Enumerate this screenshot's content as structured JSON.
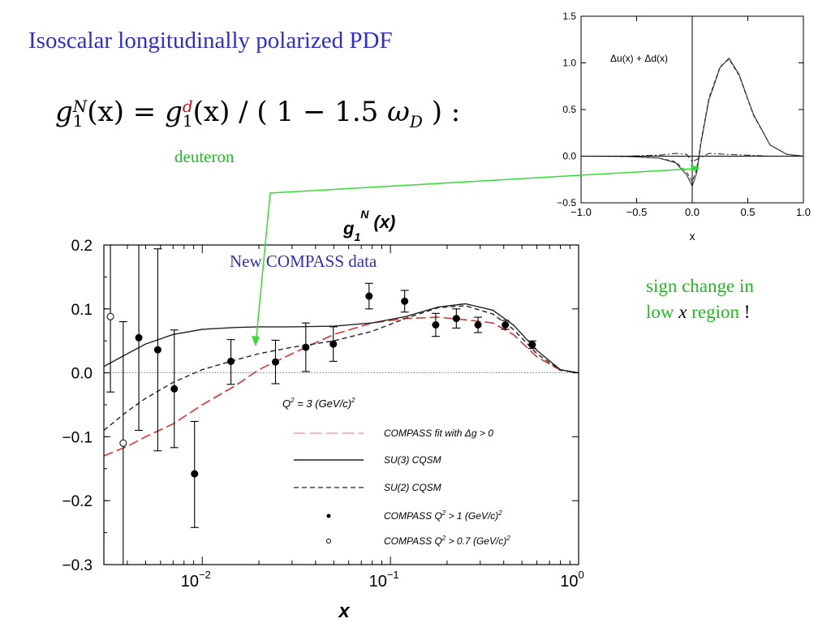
{
  "slide": {
    "title": "Isoscalar longitudinally polarized PDF",
    "formula": {
      "lhs_g": "g",
      "lhs_sub": "1",
      "lhs_sup": "N",
      "lhs_arg": "(x) = ",
      "rhs_g": "g",
      "rhs_sub": "1",
      "rhs_sup": "d",
      "rhs_arg": "(x) / ( 1 − 1.5 ",
      "omega": "ω",
      "omega_sub": "D",
      "tail": " )  :"
    },
    "deuteron_label": "deuteron",
    "compass_note": "New COMPASS data",
    "sign_note": {
      "line1": "sign change in",
      "line2_a": "low ",
      "line2_x": "x",
      "line2_b": " region ",
      "line2_c": "!"
    },
    "colors": {
      "title": "#2f2fc8",
      "green": "#22bb22",
      "red": "#cc1111",
      "arrow": "#33dd33"
    }
  },
  "chart_data": [
    {
      "type": "line",
      "title": "g1^N (x)",
      "title_g": "g",
      "title_sub": "1",
      "title_sup": "N",
      "title_arg": " (x)",
      "xlabel": "x",
      "xscale": "log",
      "xlim": [
        0.003,
        1.0
      ],
      "ylim": [
        -0.3,
        0.2
      ],
      "xticks": [
        {
          "v": 0.01,
          "base": "10",
          "exp": "−2"
        },
        {
          "v": 0.1,
          "base": "10",
          "exp": "−1"
        },
        {
          "v": 1,
          "base": "10",
          "exp": "0"
        }
      ],
      "yticks": [
        {
          "v": 0.2,
          "label": "0.2"
        },
        {
          "v": 0.1,
          "label": "0.1"
        },
        {
          "v": 0.0,
          "label": "0.0"
        },
        {
          "v": -0.1,
          "label": "−0.1"
        },
        {
          "v": -0.2,
          "label": "−0.2"
        },
        {
          "v": -0.3,
          "label": "−0.3"
        }
      ],
      "zero_line": true,
      "legend_header": {
        "q": "Q",
        "sup": "2",
        "rest": " = 3 (GeV/c)",
        "sup2": "2"
      },
      "series": [
        {
          "name": "COMPASS fit with Δg > 0",
          "style": "red-dash",
          "color": "#e03030",
          "x": [
            0.003,
            0.004,
            0.005,
            0.007,
            0.01,
            0.015,
            0.02,
            0.03,
            0.05,
            0.08,
            0.12,
            0.18,
            0.25,
            0.35,
            0.45,
            0.6,
            0.8,
            1.0
          ],
          "y": [
            -0.13,
            -0.115,
            -0.1,
            -0.08,
            -0.05,
            -0.02,
            0.005,
            0.03,
            0.06,
            0.078,
            0.085,
            0.087,
            0.083,
            0.078,
            0.06,
            0.025,
            0.004,
            0.0
          ]
        },
        {
          "name": "SU(3) CQSM",
          "style": "solid",
          "color": "#222222",
          "x": [
            0.003,
            0.004,
            0.005,
            0.007,
            0.01,
            0.015,
            0.02,
            0.03,
            0.05,
            0.08,
            0.12,
            0.18,
            0.25,
            0.35,
            0.45,
            0.6,
            0.8,
            1.0
          ],
          "y": [
            0.01,
            0.03,
            0.045,
            0.06,
            0.068,
            0.071,
            0.072,
            0.072,
            0.073,
            0.078,
            0.088,
            0.103,
            0.108,
            0.098,
            0.075,
            0.035,
            0.005,
            0.0
          ]
        },
        {
          "name": "SU(2) CQSM",
          "style": "dash",
          "color": "#222222",
          "x": [
            0.003,
            0.004,
            0.005,
            0.007,
            0.01,
            0.015,
            0.02,
            0.03,
            0.05,
            0.08,
            0.12,
            0.18,
            0.25,
            0.35,
            0.45,
            0.6,
            0.8,
            1.0
          ],
          "y": [
            -0.09,
            -0.06,
            -0.04,
            -0.015,
            0.005,
            0.02,
            0.03,
            0.04,
            0.05,
            0.065,
            0.085,
            0.102,
            0.105,
            0.092,
            0.068,
            0.03,
            0.004,
            0.0
          ]
        },
        {
          "name": "COMPASS Q² > 1 (GeV/c)²",
          "legend": {
            "a": "COMPASS Q",
            "s1": "2",
            "b": " > 1 (GeV/c)",
            "s2": "2"
          },
          "style": "filled-points",
          "points": [
            {
              "x": 0.0046,
              "y": 0.055,
              "lo": -0.09,
              "hi": 0.2
            },
            {
              "x": 0.0058,
              "y": 0.036,
              "lo": -0.122,
              "hi": 0.194
            },
            {
              "x": 0.0071,
              "y": -0.025,
              "lo": -0.117,
              "hi": 0.067
            },
            {
              "x": 0.0091,
              "y": -0.158,
              "lo": -0.242,
              "hi": -0.076
            },
            {
              "x": 0.0142,
              "y": 0.018,
              "lo": -0.018,
              "hi": 0.052
            },
            {
              "x": 0.0245,
              "y": 0.017,
              "lo": -0.017,
              "hi": 0.051
            },
            {
              "x": 0.0355,
              "y": 0.04,
              "lo": 0.002,
              "hi": 0.078
            },
            {
              "x": 0.0497,
              "y": 0.045,
              "lo": 0.018,
              "hi": 0.072
            },
            {
              "x": 0.077,
              "y": 0.12,
              "lo": 0.1,
              "hi": 0.14
            },
            {
              "x": 0.119,
              "y": 0.112,
              "lo": 0.095,
              "hi": 0.129
            },
            {
              "x": 0.174,
              "y": 0.075,
              "lo": 0.057,
              "hi": 0.093
            },
            {
              "x": 0.224,
              "y": 0.085,
              "lo": 0.07,
              "hi": 0.1
            },
            {
              "x": 0.292,
              "y": 0.075,
              "lo": 0.063,
              "hi": 0.087
            },
            {
              "x": 0.408,
              "y": 0.075,
              "lo": 0.068,
              "hi": 0.082
            },
            {
              "x": 0.567,
              "y": 0.044,
              "lo": 0.038,
              "hi": 0.05
            }
          ]
        },
        {
          "name": "COMPASS Q² > 0.7 (GeV/c)²",
          "legend": {
            "a": "COMPASS Q",
            "s1": "2",
            "b": " > 0.7 (GeV/c)",
            "s2": "2"
          },
          "style": "open-points",
          "points": [
            {
              "x": 0.00325,
              "y": 0.088,
              "lo": -0.03,
              "hi": 0.2
            },
            {
              "x": 0.0038,
              "y": -0.11,
              "lo": -0.3,
              "hi": 0.08
            }
          ]
        }
      ]
    },
    {
      "type": "line",
      "annotation": "Δu(x) + Δd(x)",
      "xlabel": "x",
      "xlim": [
        -1.0,
        1.0
      ],
      "ylim": [
        -0.5,
        1.5
      ],
      "xticks": [
        {
          "v": -1.0,
          "label": "−1.0"
        },
        {
          "v": -0.5,
          "label": "−0.5"
        },
        {
          "v": 0.0,
          "label": "0.0"
        },
        {
          "v": 0.5,
          "label": "0.5"
        },
        {
          "v": 1.0,
          "label": "1.0"
        }
      ],
      "yticks": [
        {
          "v": 1.5,
          "label": "1.5"
        },
        {
          "v": 1.0,
          "label": "1.0"
        },
        {
          "v": 0.5,
          "label": "0.5"
        },
        {
          "v": 0.0,
          "label": "0.0"
        },
        {
          "v": -0.5,
          "label": "−0.5"
        }
      ],
      "series": [
        {
          "style": "solid",
          "x": [
            -1.0,
            -0.6,
            -0.3,
            -0.15,
            -0.05,
            0.0,
            0.04,
            0.08,
            0.15,
            0.25,
            0.33,
            0.42,
            0.55,
            0.7,
            0.85,
            1.0
          ],
          "y": [
            0.0,
            -0.003,
            -0.02,
            -0.07,
            -0.2,
            -0.32,
            -0.18,
            0.15,
            0.6,
            0.95,
            1.05,
            0.88,
            0.45,
            0.12,
            0.02,
            0.0
          ]
        },
        {
          "style": "dash",
          "x": [
            -1.0,
            -0.6,
            -0.3,
            -0.15,
            -0.05,
            0.0,
            0.04,
            0.08,
            0.15,
            0.25,
            0.33,
            0.42,
            0.55,
            0.7,
            0.85,
            1.0
          ],
          "y": [
            0.0,
            -0.003,
            -0.02,
            -0.06,
            -0.17,
            -0.27,
            -0.14,
            0.17,
            0.62,
            0.96,
            1.04,
            0.87,
            0.44,
            0.12,
            0.02,
            0.0
          ]
        },
        {
          "style": "dashdot",
          "x": [
            -1.0,
            -0.6,
            -0.3,
            -0.15,
            -0.05,
            0.0,
            0.05,
            0.15,
            0.3,
            0.5,
            0.7,
            1.0
          ],
          "y": [
            0.0,
            0.0,
            0.01,
            0.03,
            0.02,
            -0.06,
            -0.03,
            0.03,
            0.02,
            0.01,
            0.0,
            0.0
          ]
        }
      ]
    }
  ]
}
